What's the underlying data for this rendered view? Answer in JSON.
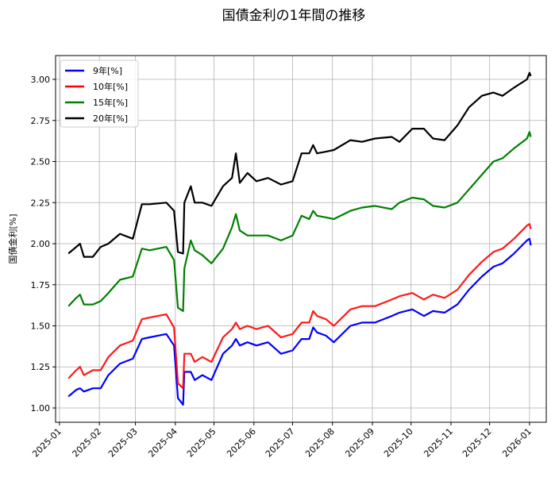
{
  "chart_data": {
    "type": "line",
    "title": "国債金利の1年間の推移",
    "xlabel": "",
    "ylabel": "国債金利[%]",
    "ylim": [
      0.913,
      3.145
    ],
    "xlim": [
      "2024-12-29",
      "2026-01-14"
    ],
    "grid": true,
    "legend_position": "top-left",
    "yticks": [
      "1.00",
      "1.25",
      "1.50",
      "1.75",
      "2.00",
      "2.25",
      "2.50",
      "2.75",
      "3.00"
    ],
    "xticks": [
      "2025-01",
      "2025-02",
      "2025-03",
      "2025-04",
      "2025-05",
      "2025-06",
      "2025-07",
      "2025-08",
      "2025-09",
      "2025-10",
      "2025-11",
      "2025-12",
      "2026-01"
    ],
    "x": [
      "2025-01-08",
      "2025-01-14",
      "2025-01-17",
      "2025-01-20",
      "2025-01-27",
      "2025-02-02",
      "2025-02-08",
      "2025-02-17",
      "2025-02-27",
      "2025-03-06",
      "2025-03-12",
      "2025-03-25",
      "2025-03-31",
      "2025-04-03",
      "2025-04-07",
      "2025-04-08",
      "2025-04-13",
      "2025-04-16",
      "2025-04-22",
      "2025-04-29",
      "2025-05-08",
      "2025-05-15",
      "2025-05-18",
      "2025-05-21",
      "2025-05-27",
      "2025-06-03",
      "2025-06-12",
      "2025-06-22",
      "2025-07-01",
      "2025-07-08",
      "2025-07-14",
      "2025-07-17",
      "2025-07-20",
      "2025-07-27",
      "2025-08-02",
      "2025-08-15",
      "2025-08-24",
      "2025-09-03",
      "2025-09-16",
      "2025-09-22",
      "2025-10-02",
      "2025-10-11",
      "2025-10-18",
      "2025-10-27",
      "2025-11-06",
      "2025-11-15",
      "2025-11-25",
      "2025-12-04",
      "2025-12-11",
      "2025-12-20",
      "2025-12-30",
      "2026-01-01",
      "2026-01-02"
    ],
    "series": [
      {
        "name": "9年[%]",
        "color": "#0000ff",
        "values": [
          1.07,
          1.11,
          1.12,
          1.1,
          1.12,
          1.12,
          1.2,
          1.27,
          1.3,
          1.42,
          1.43,
          1.45,
          1.38,
          1.06,
          1.02,
          1.22,
          1.22,
          1.17,
          1.2,
          1.17,
          1.33,
          1.38,
          1.42,
          1.38,
          1.4,
          1.38,
          1.4,
          1.33,
          1.35,
          1.42,
          1.42,
          1.49,
          1.46,
          1.44,
          1.4,
          1.5,
          1.52,
          1.52,
          1.56,
          1.58,
          1.6,
          1.56,
          1.59,
          1.58,
          1.63,
          1.72,
          1.8,
          1.86,
          1.88,
          1.94,
          2.02,
          2.03,
          1.99
        ]
      },
      {
        "name": "10年[%]",
        "color": "#ff0000",
        "values": [
          1.18,
          1.23,
          1.25,
          1.2,
          1.23,
          1.23,
          1.31,
          1.38,
          1.41,
          1.54,
          1.55,
          1.57,
          1.49,
          1.15,
          1.12,
          1.33,
          1.33,
          1.28,
          1.31,
          1.28,
          1.43,
          1.48,
          1.52,
          1.48,
          1.5,
          1.48,
          1.5,
          1.43,
          1.45,
          1.52,
          1.52,
          1.59,
          1.56,
          1.54,
          1.5,
          1.6,
          1.62,
          1.62,
          1.66,
          1.68,
          1.7,
          1.66,
          1.69,
          1.67,
          1.72,
          1.81,
          1.89,
          1.95,
          1.97,
          2.03,
          2.11,
          2.12,
          2.09
        ]
      },
      {
        "name": "15年[%]",
        "color": "#008000",
        "values": [
          1.62,
          1.67,
          1.69,
          1.63,
          1.63,
          1.65,
          1.7,
          1.78,
          1.8,
          1.97,
          1.96,
          1.98,
          1.9,
          1.61,
          1.59,
          1.85,
          2.02,
          1.96,
          1.93,
          1.88,
          1.97,
          2.1,
          2.18,
          2.08,
          2.05,
          2.05,
          2.05,
          2.02,
          2.05,
          2.17,
          2.15,
          2.2,
          2.17,
          2.16,
          2.15,
          2.2,
          2.22,
          2.23,
          2.21,
          2.25,
          2.28,
          2.27,
          2.23,
          2.22,
          2.25,
          2.33,
          2.42,
          2.5,
          2.52,
          2.58,
          2.64,
          2.68,
          2.65
        ]
      },
      {
        "name": "20年[%]",
        "color": "#000000",
        "values": [
          1.94,
          1.98,
          2.0,
          1.92,
          1.92,
          1.98,
          2.0,
          2.06,
          2.03,
          2.24,
          2.24,
          2.25,
          2.2,
          1.95,
          1.94,
          2.25,
          2.35,
          2.25,
          2.25,
          2.23,
          2.35,
          2.4,
          2.55,
          2.37,
          2.43,
          2.38,
          2.4,
          2.36,
          2.38,
          2.55,
          2.55,
          2.6,
          2.55,
          2.56,
          2.57,
          2.63,
          2.62,
          2.64,
          2.65,
          2.62,
          2.7,
          2.7,
          2.64,
          2.63,
          2.72,
          2.83,
          2.9,
          2.92,
          2.9,
          2.95,
          3.0,
          3.04,
          3.02
        ]
      }
    ]
  }
}
